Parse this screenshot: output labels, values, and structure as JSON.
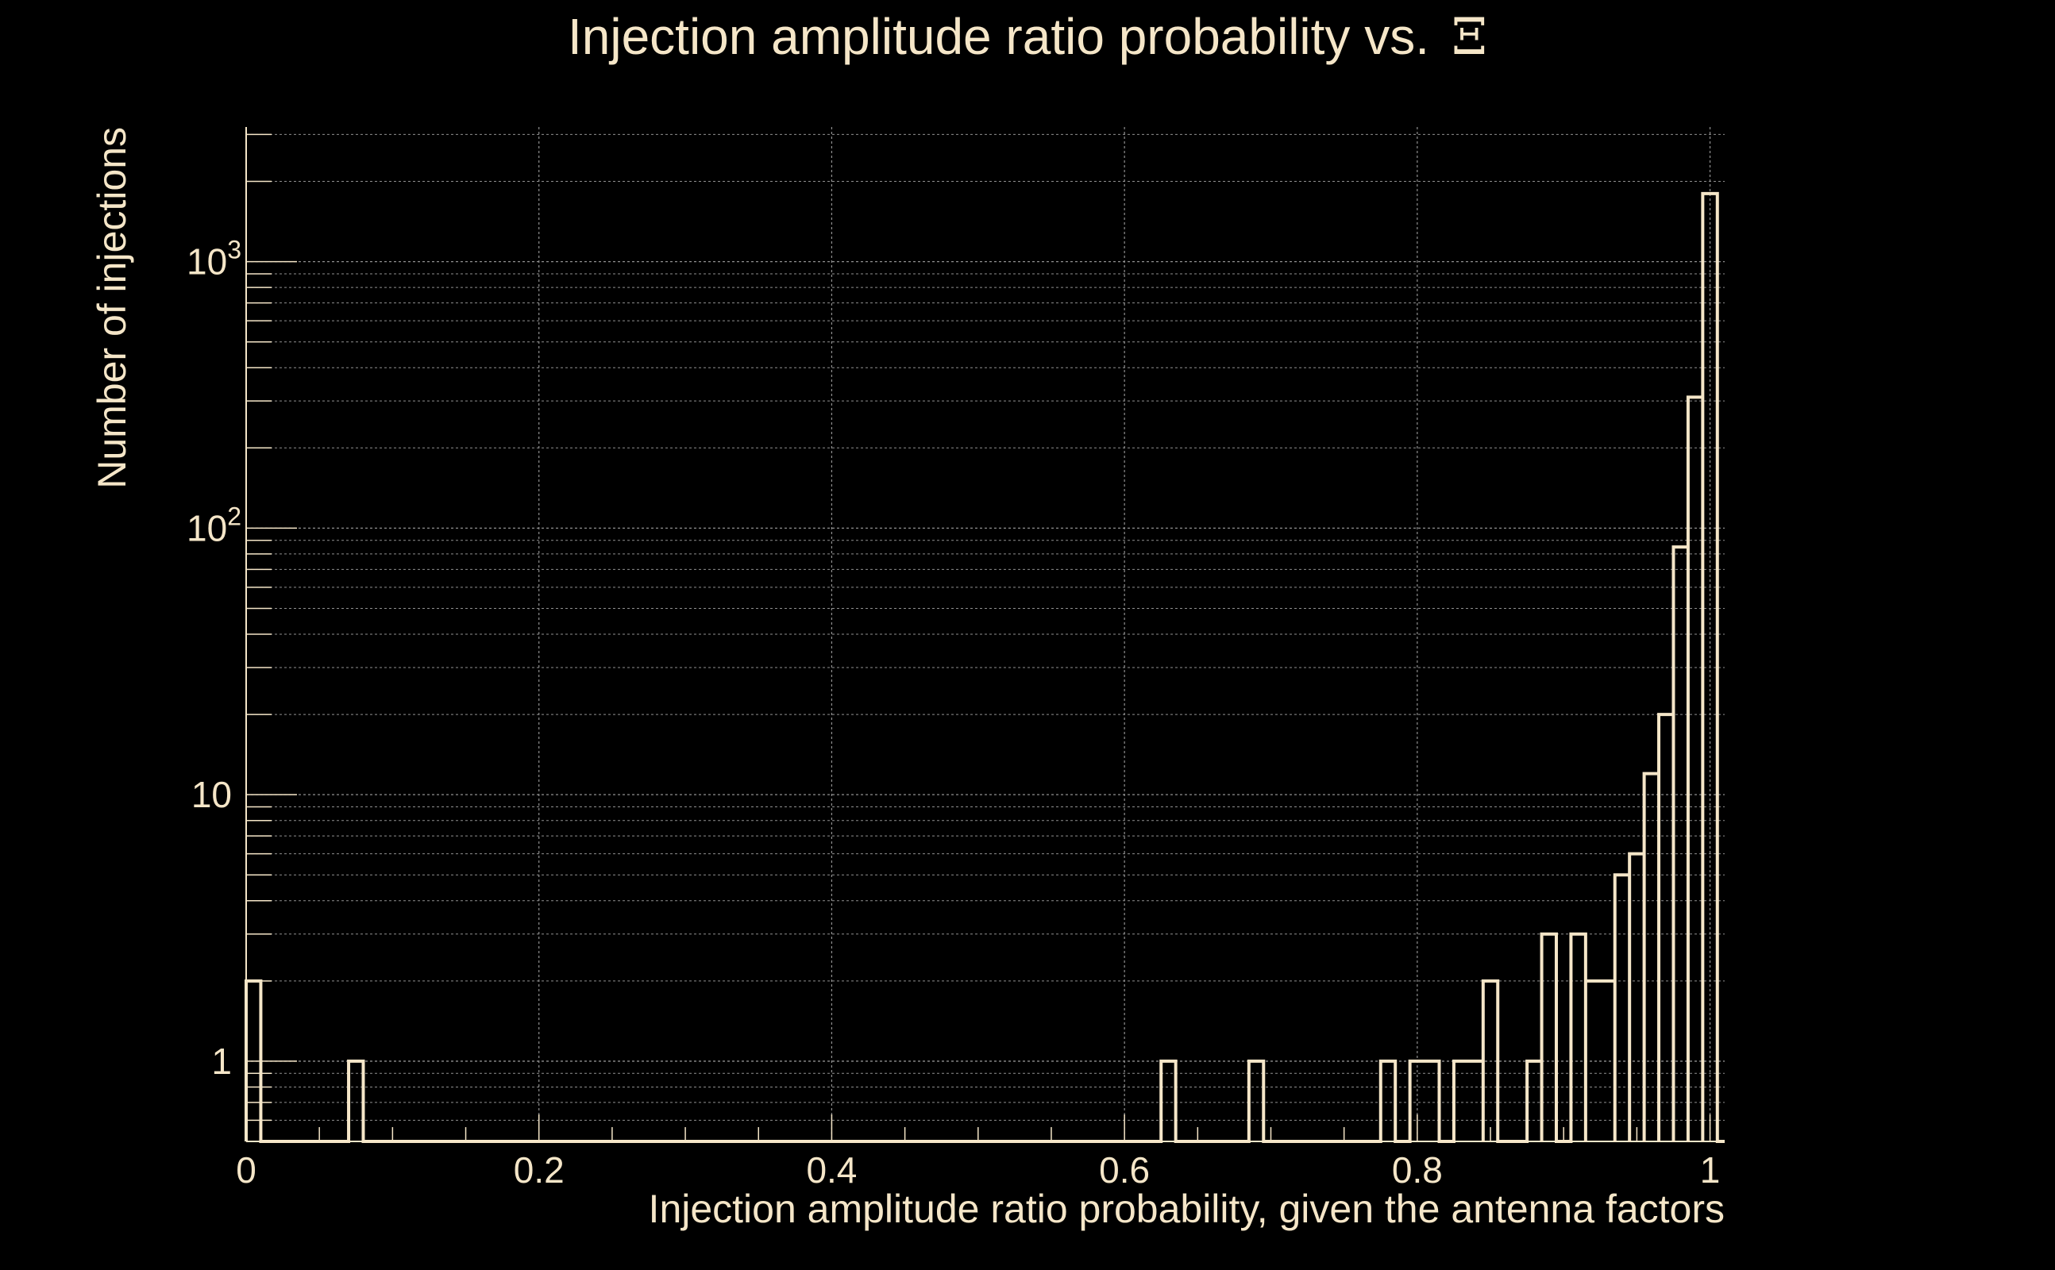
{
  "chart_data": {
    "type": "histogram",
    "title": "Injection amplitude ratio probability vs.",
    "title_symbol": "Ξ",
    "xlabel": "Injection amplitude ratio probability, given the antenna factors",
    "ylabel": "Number of injections",
    "xlim": [
      0,
      1.01
    ],
    "ylim": [
      0.5,
      3200
    ],
    "yscale": "log",
    "grid": true,
    "x_ticks": [
      {
        "value": 0,
        "label": "0"
      },
      {
        "value": 0.2,
        "label": "0.2"
      },
      {
        "value": 0.4,
        "label": "0.4"
      },
      {
        "value": 0.6,
        "label": "0.6"
      },
      {
        "value": 0.8,
        "label": "0.8"
      },
      {
        "value": 1,
        "label": "1"
      }
    ],
    "y_ticks": [
      {
        "value": 1,
        "base": "1",
        "exp": ""
      },
      {
        "value": 10,
        "base": "10",
        "exp": ""
      },
      {
        "value": 100,
        "base": "10",
        "exp": "2"
      },
      {
        "value": 1000,
        "base": "10",
        "exp": "3"
      }
    ],
    "bins": [
      {
        "x0": 0.0,
        "x1": 0.01,
        "count": 2
      },
      {
        "x0": 0.07,
        "x1": 0.08,
        "count": 1
      },
      {
        "x0": 0.625,
        "x1": 0.635,
        "count": 1
      },
      {
        "x0": 0.685,
        "x1": 0.695,
        "count": 1
      },
      {
        "x0": 0.775,
        "x1": 0.785,
        "count": 1
      },
      {
        "x0": 0.795,
        "x1": 0.815,
        "count": 1
      },
      {
        "x0": 0.825,
        "x1": 0.845,
        "count": 1
      },
      {
        "x0": 0.845,
        "x1": 0.855,
        "count": 2
      },
      {
        "x0": 0.875,
        "x1": 0.885,
        "count": 1
      },
      {
        "x0": 0.885,
        "x1": 0.895,
        "count": 3
      },
      {
        "x0": 0.905,
        "x1": 0.915,
        "count": 3
      },
      {
        "x0": 0.915,
        "x1": 0.935,
        "count": 2
      },
      {
        "x0": 0.935,
        "x1": 0.945,
        "count": 5
      },
      {
        "x0": 0.945,
        "x1": 0.955,
        "count": 6
      },
      {
        "x0": 0.955,
        "x1": 0.965,
        "count": 12
      },
      {
        "x0": 0.965,
        "x1": 0.975,
        "count": 20
      },
      {
        "x0": 0.975,
        "x1": 0.985,
        "count": 85
      },
      {
        "x0": 0.985,
        "x1": 0.995,
        "count": 310
      },
      {
        "x0": 0.995,
        "x1": 1.005,
        "count": 1800
      }
    ]
  },
  "colors": {
    "background": "#000000",
    "foreground": "#f5e6c8",
    "grid": "#8f8f8f"
  }
}
